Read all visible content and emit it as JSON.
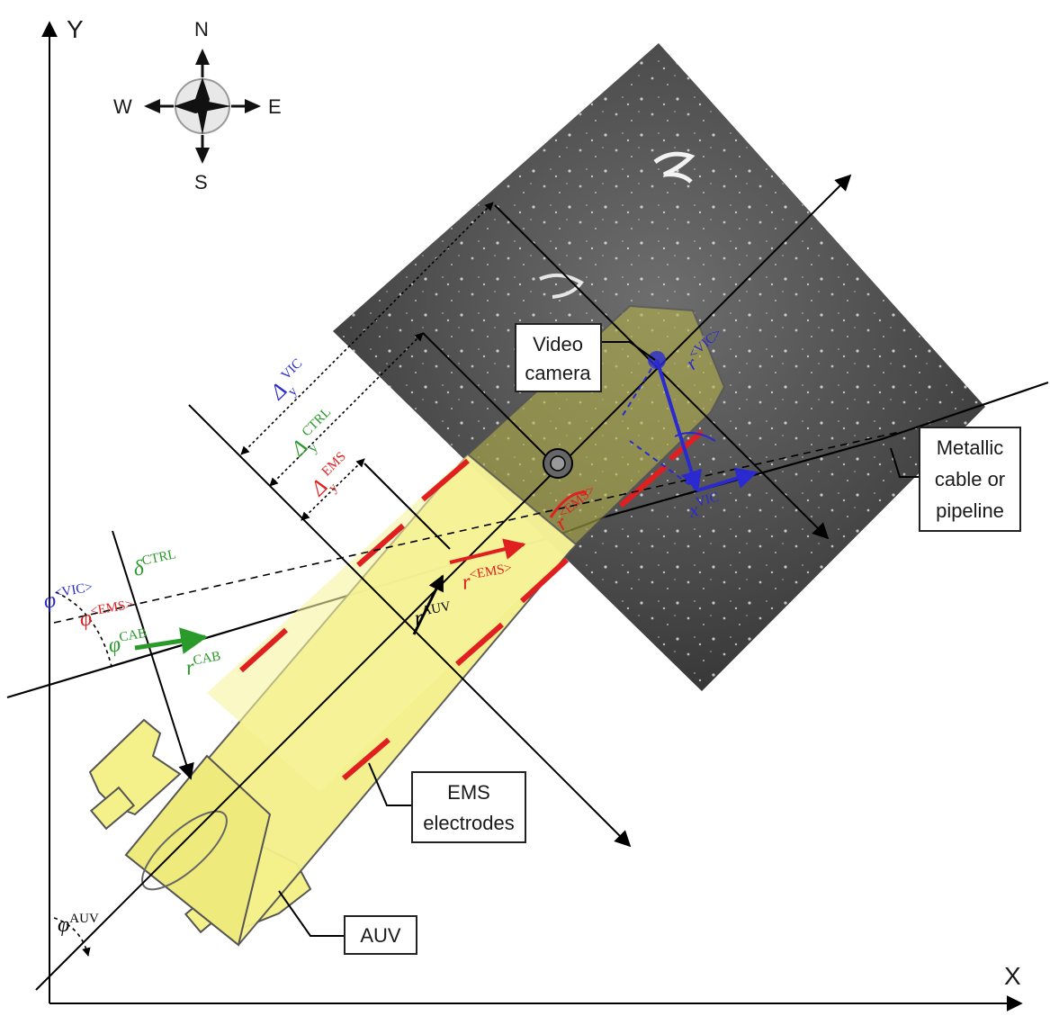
{
  "axes": {
    "x_label": "X",
    "y_label": "Y"
  },
  "compass": {
    "north": "N",
    "south": "S",
    "east": "E",
    "west": "W"
  },
  "labels": {
    "video_camera": [
      "Video",
      "camera"
    ],
    "metallic_cable": [
      "Metallic",
      "cable or",
      "pipeline"
    ],
    "ems_electrodes": [
      "EMS",
      "electrodes"
    ],
    "auv": "AUV"
  },
  "symbols": {
    "delta_vic": {
      "base": "Δ",
      "sub": "y",
      "sup": "VIC"
    },
    "delta_ctrl": {
      "base": "Δ",
      "sub": "y",
      "sup": "CTRL"
    },
    "delta_ems": {
      "base": "Δ",
      "sub": "y",
      "sup": "EMS"
    },
    "phi_vic": {
      "base": "φ",
      "sup": "<VIC>"
    },
    "phi_ems": {
      "base": "φ",
      "sup": "<EMS>"
    },
    "phi_cab": {
      "base": "φ",
      "sup": "CAB"
    },
    "phi_auv": {
      "base": "φ",
      "sup": "AUV"
    },
    "delta_ctrl_angle": {
      "base": "δ",
      "sup": "CTRL"
    },
    "r_cab": {
      "base": "r",
      "sup": "CAB"
    },
    "r_ems": {
      "base": "r",
      "sup": "<EMS>"
    },
    "r_auv": {
      "base": "r",
      "sup": "AUV"
    },
    "r_vic": {
      "base": "r",
      "sup": "<VIC>"
    },
    "x_vic": {
      "base": "x",
      "sup": "VIC"
    },
    "r_ems_red": {
      "base": "r",
      "sup": "<EMS>"
    }
  },
  "colors": {
    "vic": "#2a2ad0",
    "ctrl": "#2a9a2a",
    "ems": "#e02020",
    "auv_body": "#f4f08a",
    "auv_dark": "#8a8a20",
    "seabed": "#5a5a5a"
  }
}
